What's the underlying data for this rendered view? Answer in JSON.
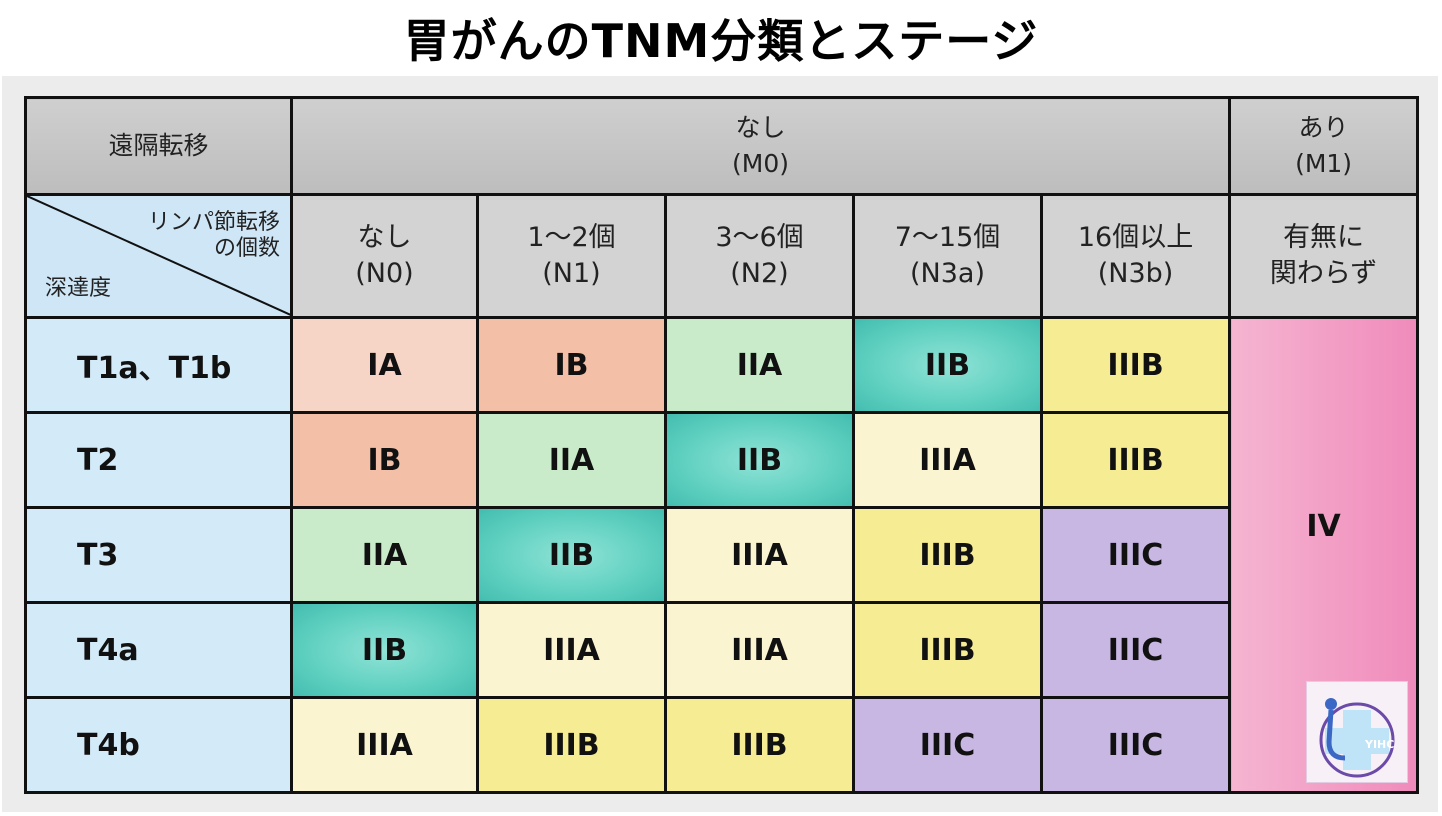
{
  "title": "胃がんのTNM分類とステージ",
  "header": {
    "metastasis_label": "遠隔転移",
    "m0_line1": "なし",
    "m0_line2": "(M0)",
    "m1_line1": "あり",
    "m1_line2": "(M1)",
    "corner_top_line1": "リンパ節転移",
    "corner_top_line2": "の個数",
    "corner_bottom": "深達度"
  },
  "columns": [
    {
      "line1": "なし",
      "line2": "(N0)"
    },
    {
      "line1": "1〜2個",
      "line2": "(N1)"
    },
    {
      "line1": "3〜6個",
      "line2": "(N2)"
    },
    {
      "line1": "7〜15個",
      "line2": "(N3a)"
    },
    {
      "line1": "16個以上",
      "line2": "(N3b)"
    },
    {
      "line1": "有無に",
      "line2": "関わらず"
    }
  ],
  "rows": [
    {
      "label": "T1a、T1b",
      "cells": [
        "IA",
        "IB",
        "IIA",
        "IIB",
        "IIIB"
      ]
    },
    {
      "label": "T2",
      "cells": [
        "IB",
        "IIA",
        "IIB",
        "IIIA",
        "IIIB"
      ]
    },
    {
      "label": "T3",
      "cells": [
        "IIA",
        "IIB",
        "IIIA",
        "IIIB",
        "IIIC"
      ]
    },
    {
      "label": "T4a",
      "cells": [
        "IIB",
        "IIIA",
        "IIIA",
        "IIIB",
        "IIIC"
      ]
    },
    {
      "label": "T4b",
      "cells": [
        "IIIA",
        "IIIB",
        "IIIB",
        "IIIC",
        "IIIC"
      ]
    }
  ],
  "m1_stage": "IV",
  "stage_colors": {
    "IA": "#f7d5c6",
    "IB": "#f3c0a7",
    "IIA": "#c9ebc9",
    "IIB": "#5fd0c0",
    "IIIA": "#fbf4d0",
    "IIIB": "#f6ec93",
    "IIIC": "#c8b7e3",
    "IV": "#f08bbb"
  },
  "logo_icon": "clinic-logo-icon"
}
